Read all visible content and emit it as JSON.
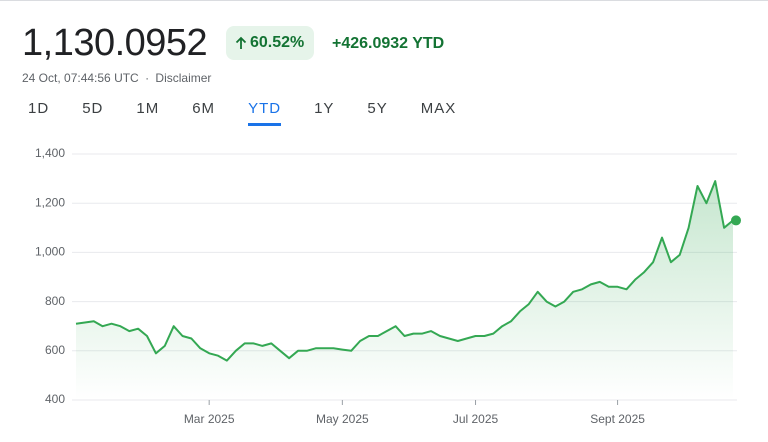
{
  "header": {
    "price": "1,130.0952",
    "change_percent": "60.52%",
    "change_abs": "+426.0932 YTD",
    "timestamp": "24 Oct, 07:44:56 UTC",
    "separator": "·",
    "disclaimer": "Disclaimer"
  },
  "tabs": [
    "1D",
    "5D",
    "1M",
    "6M",
    "YTD",
    "1Y",
    "5Y",
    "MAX"
  ],
  "selected_tab": "YTD",
  "chart_data": {
    "type": "line",
    "color": "#34a853",
    "grid": true,
    "ylim": [
      400,
      1400
    ],
    "yticks": [
      400,
      600,
      800,
      {
        "value": 1000,
        "label": "1,000"
      },
      {
        "value": 1200,
        "label": "1,200"
      },
      {
        "value": 1400,
        "label": "1,400"
      }
    ],
    "categories": [
      null,
      null,
      null,
      null,
      null,
      null,
      null,
      null,
      null,
      null,
      null,
      null,
      null,
      null,
      null,
      "Mar 2025",
      null,
      null,
      null,
      null,
      null,
      null,
      null,
      null,
      null,
      null,
      null,
      null,
      null,
      null,
      "May 2025",
      null,
      null,
      null,
      null,
      null,
      null,
      null,
      null,
      null,
      null,
      null,
      null,
      null,
      null,
      "Jul 2025",
      null,
      null,
      null,
      null,
      null,
      null,
      null,
      null,
      null,
      null,
      null,
      null,
      null,
      null,
      null,
      "Sept 2025",
      null,
      null,
      null,
      null,
      null,
      null,
      null,
      null,
      null,
      null,
      null,
      null,
      null
    ],
    "values": [
      710,
      715,
      720,
      700,
      710,
      700,
      680,
      690,
      660,
      590,
      620,
      700,
      660,
      650,
      610,
      590,
      580,
      560,
      600,
      630,
      630,
      620,
      630,
      600,
      570,
      600,
      600,
      610,
      610,
      610,
      605,
      600,
      640,
      660,
      660,
      680,
      700,
      660,
      670,
      670,
      680,
      660,
      650,
      640,
      650,
      660,
      660,
      670,
      700,
      720,
      760,
      790,
      840,
      800,
      780,
      800,
      840,
      850,
      870,
      880,
      860,
      860,
      850,
      890,
      920,
      960,
      1060,
      960,
      990,
      1100,
      1270,
      1200,
      1290,
      1100,
      1130
    ]
  }
}
